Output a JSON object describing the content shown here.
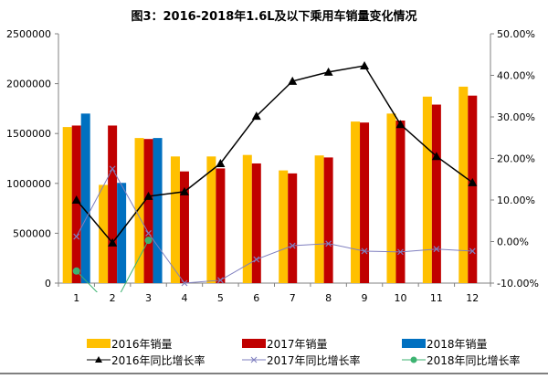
{
  "chart_data": {
    "type": "bar+line",
    "title": "图3：2016-2018年1.6L及以下乘用车销量变化情况",
    "categories": [
      "1",
      "2",
      "3",
      "4",
      "5",
      "6",
      "7",
      "8",
      "9",
      "10",
      "11",
      "12"
    ],
    "y_left": {
      "range": [
        0,
        2500000
      ],
      "ticks": [
        "0",
        "500000",
        "1000000",
        "1500000",
        "2000000",
        "2500000"
      ]
    },
    "y_right": {
      "range": [
        -10,
        50
      ],
      "unit": "%",
      "ticks": [
        "-10.00%",
        "0.00%",
        "10.00%",
        "20.00%",
        "30.00%",
        "40.00%",
        "50.00%"
      ]
    },
    "grid": false,
    "legend_position": "bottom",
    "bar_series": [
      {
        "name": "2016年销量",
        "color": "#FFC000",
        "values": [
          1565000,
          985000,
          1455000,
          1270000,
          1270000,
          1285000,
          1130000,
          1280000,
          1620000,
          1700000,
          1870000,
          1970000
        ]
      },
      {
        "name": "2017年销量",
        "color": "#C00000",
        "values": [
          1580000,
          1580000,
          1445000,
          1120000,
          1150000,
          1200000,
          1100000,
          1260000,
          1610000,
          1630000,
          1790000,
          1880000
        ]
      },
      {
        "name": "2018年销量",
        "color": "#0070C0",
        "values": [
          1700000,
          1005000,
          1455000,
          null,
          null,
          null,
          null,
          null,
          null,
          null,
          null,
          null
        ]
      }
    ],
    "line_series": [
      {
        "name": "2016年同比增长率",
        "color": "#000000",
        "marker": "triangle",
        "values": [
          10.0,
          -0.3,
          10.9,
          12.0,
          18.8,
          30.2,
          38.6,
          40.8,
          42.3,
          28.2,
          20.5,
          14.2
        ]
      },
      {
        "name": "2017年同比增长率",
        "color": "#7F7FBF",
        "marker": "x",
        "values": [
          1.2,
          17.5,
          2.0,
          -10.0,
          -9.3,
          -4.3,
          -1.0,
          -0.5,
          -2.3,
          -2.5,
          -1.8,
          -2.3
        ]
      },
      {
        "name": "2018年同比增长率",
        "color": "#3CB371",
        "marker": "circle",
        "values": [
          -7.1,
          -16.0,
          0.3,
          null,
          null,
          null,
          null,
          null,
          null,
          null,
          null,
          null
        ]
      }
    ]
  }
}
